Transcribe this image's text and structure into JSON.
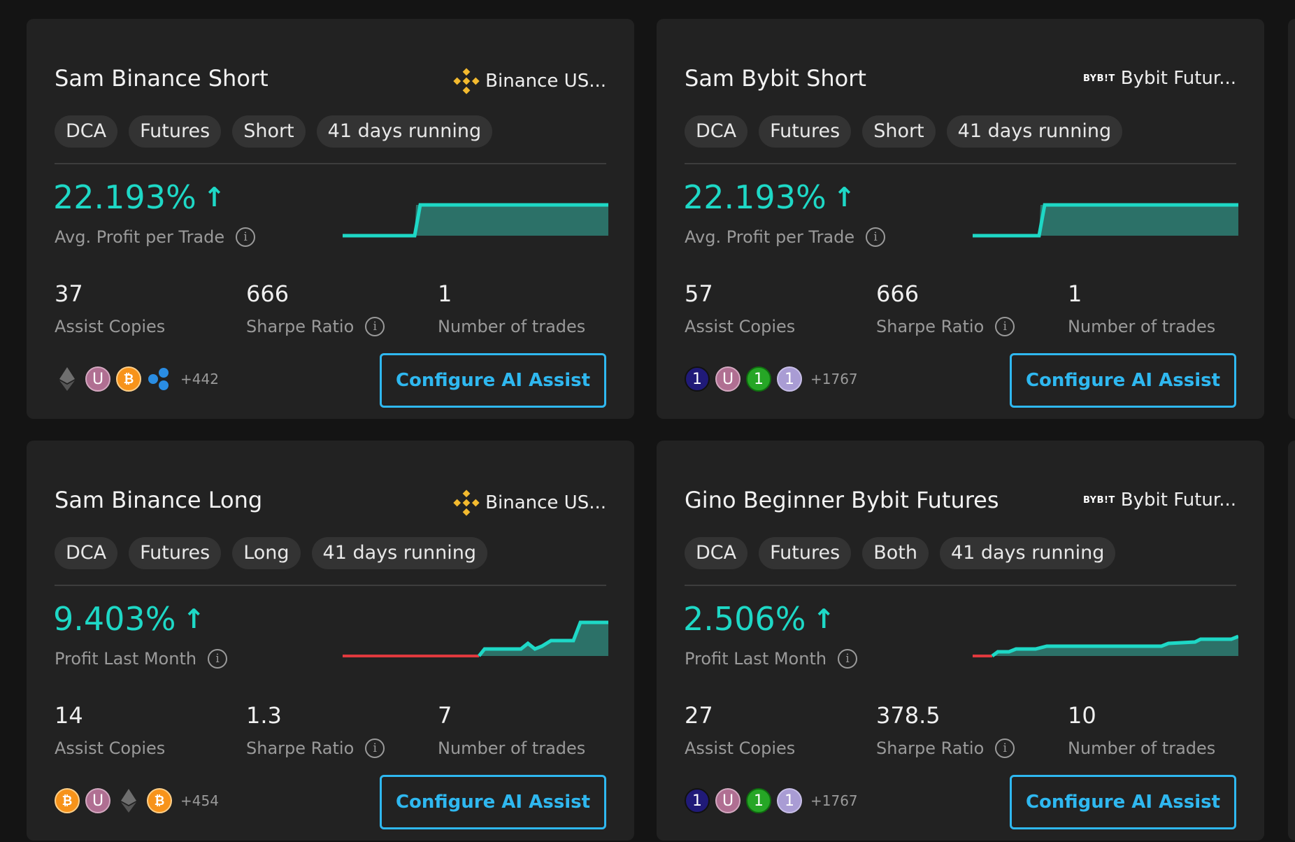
{
  "colors": {
    "accent": "#1ed8c6",
    "button": "#2fb8f0",
    "card": "#222222",
    "background": "#141414"
  },
  "cards": [
    {
      "title": "Sam Binance Short",
      "exchange": "Binance US...",
      "exchange_icon": "binance-icon",
      "tags": [
        "DCA",
        "Futures",
        "Short",
        "41 days running"
      ],
      "metric_value": "22.193%",
      "metric_label": "Avg. Profit per Trade",
      "stats": [
        {
          "value": "37",
          "label": "Assist Copies"
        },
        {
          "value": "666",
          "label": "Sharpe Ratio"
        },
        {
          "value": "1",
          "label": "Number of trades"
        }
      ],
      "avatars": [
        "eth-icon",
        "u-avatar",
        "btc-icon",
        "xrp-icon"
      ],
      "more_count": "+442",
      "button_label": "Configure AI Assist"
    },
    {
      "title": "Sam Bybit Short",
      "exchange": "Bybit Futur...",
      "exchange_icon": "bybit-icon",
      "exchange_logo_text": "BYB!T",
      "tags": [
        "DCA",
        "Futures",
        "Short",
        "41 days running"
      ],
      "metric_value": "22.193%",
      "metric_label": "Avg. Profit per Trade",
      "stats": [
        {
          "value": "57",
          "label": "Assist Copies"
        },
        {
          "value": "666",
          "label": "Sharpe Ratio"
        },
        {
          "value": "1",
          "label": "Number of trades"
        }
      ],
      "avatars": [
        "one-avatar-navy",
        "u-avatar",
        "one-avatar-green",
        "one-avatar-lilac"
      ],
      "more_count": "+1767",
      "button_label": "Configure AI Assist"
    },
    {
      "title": "Sam Binance Long",
      "exchange": "Binance US...",
      "exchange_icon": "binance-icon",
      "tags": [
        "DCA",
        "Futures",
        "Long",
        "41 days running"
      ],
      "metric_value": "9.403%",
      "metric_label": "Profit Last Month",
      "stats": [
        {
          "value": "14",
          "label": "Assist Copies"
        },
        {
          "value": "1.3",
          "label": "Sharpe Ratio"
        },
        {
          "value": "7",
          "label": "Number of trades"
        }
      ],
      "avatars": [
        "btc-icon",
        "u-avatar",
        "eth-icon",
        "btc-icon"
      ],
      "more_count": "+454",
      "button_label": "Configure AI Assist"
    },
    {
      "title": "Gino Beginner Bybit Futures",
      "exchange": "Bybit Futur...",
      "exchange_icon": "bybit-icon",
      "exchange_logo_text": "BYB!T",
      "tags": [
        "DCA",
        "Futures",
        "Both",
        "41 days running"
      ],
      "metric_value": "2.506%",
      "metric_label": "Profit Last Month",
      "stats": [
        {
          "value": "27",
          "label": "Assist Copies"
        },
        {
          "value": "378.5",
          "label": "Sharpe Ratio"
        },
        {
          "value": "10",
          "label": "Number of trades"
        }
      ],
      "avatars": [
        "one-avatar-navy",
        "u-avatar",
        "one-avatar-green",
        "one-avatar-lilac"
      ],
      "more_count": "+1767",
      "button_label": "Configure AI Assist"
    }
  ]
}
